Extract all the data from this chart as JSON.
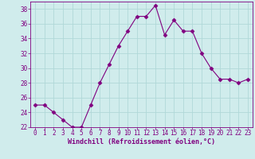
{
  "x": [
    0,
    1,
    2,
    3,
    4,
    5,
    6,
    7,
    8,
    9,
    10,
    11,
    12,
    13,
    14,
    15,
    16,
    17,
    18,
    19,
    20,
    21,
    22,
    23
  ],
  "y": [
    25,
    25,
    24,
    23,
    22,
    22,
    25,
    28,
    30.5,
    33,
    35,
    37,
    37,
    38.5,
    34.5,
    36.5,
    35,
    35,
    32,
    30,
    28.5,
    28.5,
    28,
    28.5
  ],
  "line_color": "#800080",
  "marker": "D",
  "marker_size": 2.5,
  "bg_color": "#d0ecec",
  "grid_color": "#b0d8d8",
  "xlabel": "Windchill (Refroidissement éolien,°C)",
  "xlabel_color": "#800080",
  "tick_color": "#800080",
  "ylim": [
    22,
    39
  ],
  "xlim": [
    -0.5,
    23.5
  ],
  "yticks": [
    22,
    24,
    26,
    28,
    30,
    32,
    34,
    36,
    38
  ],
  "xticks": [
    0,
    1,
    2,
    3,
    4,
    5,
    6,
    7,
    8,
    9,
    10,
    11,
    12,
    13,
    14,
    15,
    16,
    17,
    18,
    19,
    20,
    21,
    22,
    23
  ],
  "tick_fontsize": 5.5,
  "xlabel_fontsize": 6.0
}
